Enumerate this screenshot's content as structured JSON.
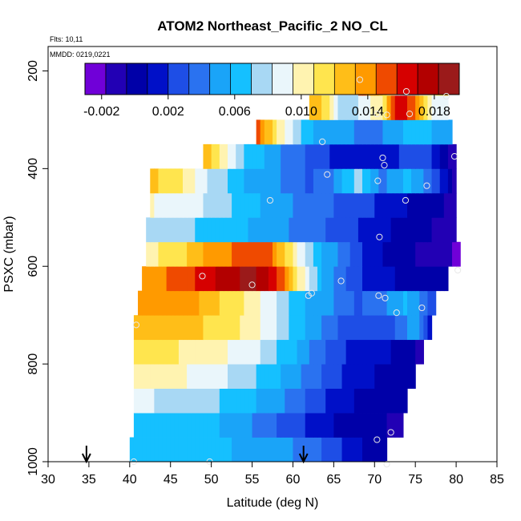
{
  "chart_data": {
    "type": "heatmap",
    "title": "ATOM2 Northeast_Pacific_2 NO_CL",
    "notes": [
      "Flts: 10,11",
      "MMDD: 0219,0221"
    ],
    "xlabel": "Latitude (deg N)",
    "ylabel": "PSXC (mbar)",
    "xlim": [
      30,
      85
    ],
    "ylim": [
      1000,
      150
    ],
    "y_inverted": true,
    "x_ticks": [
      "30",
      "35",
      "40",
      "45",
      "50",
      "55",
      "60",
      "65",
      "70",
      "75",
      "80",
      "85"
    ],
    "y_ticks": [
      "200",
      "400",
      "600",
      "800",
      "1000"
    ],
    "colorbar": {
      "min": -0.003,
      "max": 0.0195,
      "tick_labels": [
        "-0.002",
        "0.002",
        "0.006",
        "0.010",
        "0.014",
        "0.018"
      ],
      "tick_values": [
        -0.002,
        0.002,
        0.006,
        0.01,
        0.014,
        0.018
      ],
      "colors": [
        "#7000d8",
        "#2200b4",
        "#0000a8",
        "#0010c8",
        "#1e4ee6",
        "#2a72f0",
        "#1aa4f8",
        "#15c0ff",
        "#a8d8f4",
        "#eaf6fb",
        "#fff3b0",
        "#ffe54e",
        "#ffbe18",
        "#ff9a00",
        "#ef4a00",
        "#d60000",
        "#b20000",
        "#9b1a1a"
      ]
    },
    "pressure_levels": [
      975,
      925,
      875,
      825,
      775,
      725,
      675,
      625,
      575,
      525,
      475,
      425,
      375,
      325,
      275,
      225
    ],
    "rows": [
      {
        "p": 975,
        "lat_min": 40.0,
        "lat_max": 71.5,
        "knots": [
          [
            40,
            0.0062
          ],
          [
            46,
            0.006
          ],
          [
            52,
            0.0058
          ],
          [
            58,
            0.0052
          ],
          [
            64,
            0.003
          ],
          [
            68,
            0.001
          ],
          [
            71.5,
            -0.0005
          ]
        ]
      },
      {
        "p": 925,
        "lat_min": 40.5,
        "lat_max": 73.5,
        "knots": [
          [
            40.5,
            0.007
          ],
          [
            45,
            0.0065
          ],
          [
            50,
            0.006
          ],
          [
            55,
            0.0045
          ],
          [
            60,
            0.0025
          ],
          [
            64,
            0.001
          ],
          [
            68,
            0.0
          ],
          [
            73.5,
            -0.0008
          ]
        ]
      },
      {
        "p": 875,
        "lat_min": 40.5,
        "lat_max": 74.0,
        "knots": [
          [
            40.5,
            0.0085
          ],
          [
            45,
            0.008
          ],
          [
            50,
            0.0072
          ],
          [
            55,
            0.006
          ],
          [
            60,
            0.0042
          ],
          [
            64,
            0.002
          ],
          [
            68,
            0.0005
          ],
          [
            74,
            -0.0005
          ]
        ]
      },
      {
        "p": 825,
        "lat_min": 40.5,
        "lat_max": 75.0,
        "knots": [
          [
            40.5,
            0.0105
          ],
          [
            45,
            0.0098
          ],
          [
            50,
            0.009
          ],
          [
            55,
            0.0072
          ],
          [
            60,
            0.005
          ],
          [
            64,
            0.003
          ],
          [
            68,
            0.001
          ],
          [
            72,
            0.0005
          ],
          [
            75,
            -0.0005
          ]
        ]
      },
      {
        "p": 775,
        "lat_min": 40.5,
        "lat_max": 76.0,
        "knots": [
          [
            40.5,
            0.0118
          ],
          [
            45,
            0.011
          ],
          [
            50,
            0.01
          ],
          [
            55,
            0.0088
          ],
          [
            60,
            0.006
          ],
          [
            64,
            0.0032
          ],
          [
            68,
            0.0012
          ],
          [
            72,
            0.0008
          ],
          [
            76,
            -0.001
          ]
        ]
      },
      {
        "p": 725,
        "lat_min": 40.5,
        "lat_max": 77.0,
        "knots": [
          [
            40.5,
            0.0125
          ],
          [
            45,
            0.013
          ],
          [
            50,
            0.0118
          ],
          [
            55,
            0.0102
          ],
          [
            60,
            0.0068
          ],
          [
            64,
            0.0042
          ],
          [
            68,
            0.002
          ],
          [
            72,
            0.003
          ],
          [
            75,
            0.005
          ],
          [
            77,
            0.001
          ]
        ]
      },
      {
        "p": 675,
        "lat_min": 41.0,
        "lat_max": 77.5,
        "knots": [
          [
            41,
            0.014
          ],
          [
            45,
            0.0145
          ],
          [
            49,
            0.013
          ],
          [
            53,
            0.0112
          ],
          [
            57,
            0.009
          ],
          [
            61,
            0.006
          ],
          [
            65,
            0.0045
          ],
          [
            68,
            0.003
          ],
          [
            71,
            0.004
          ],
          [
            74,
            0.006
          ],
          [
            77.5,
            0.002
          ]
        ]
      },
      {
        "p": 625,
        "lat_min": 41.5,
        "lat_max": 79.0,
        "knots": [
          [
            41.5,
            0.0132
          ],
          [
            45,
            0.0148
          ],
          [
            49,
            0.016
          ],
          [
            52,
            0.0178
          ],
          [
            55,
            0.0186
          ],
          [
            58,
            0.016
          ],
          [
            61,
            0.01
          ],
          [
            64,
            0.005
          ],
          [
            67,
            0.003
          ],
          [
            70,
            0.0012
          ],
          [
            74,
            0.0005
          ],
          [
            79,
            0.0
          ]
        ]
      },
      {
        "p": 575,
        "lat_min": 42.0,
        "lat_max": 80.5,
        "knots": [
          [
            42,
            0.0105
          ],
          [
            45,
            0.011
          ],
          [
            49,
            0.0132
          ],
          [
            53,
            0.0146
          ],
          [
            57,
            0.0152
          ],
          [
            60,
            0.0105
          ],
          [
            63,
            0.006
          ],
          [
            66,
            0.004
          ],
          [
            70,
            0.001
          ],
          [
            75,
            -0.0005
          ],
          [
            78,
            -0.0015
          ],
          [
            80.5,
            -0.002
          ]
        ]
      },
      {
        "p": 525,
        "lat_min": 42.0,
        "lat_max": 80.0,
        "knots": [
          [
            42,
            0.0082
          ],
          [
            45,
            0.0078
          ],
          [
            49,
            0.0068
          ],
          [
            53,
            0.006
          ],
          [
            57,
            0.0052
          ],
          [
            61,
            0.004
          ],
          [
            65,
            0.003
          ],
          [
            70,
            0.0012
          ],
          [
            75,
            0.0
          ],
          [
            80,
            -0.0012
          ]
        ]
      },
      {
        "p": 475,
        "lat_min": 42.5,
        "lat_max": 80.0,
        "knots": [
          [
            42.5,
            0.0096
          ],
          [
            45,
            0.009
          ],
          [
            50,
            0.008
          ],
          [
            55,
            0.006
          ],
          [
            60,
            0.0045
          ],
          [
            65,
            0.0032
          ],
          [
            70,
            0.002
          ],
          [
            75,
            0.0005
          ],
          [
            80,
            -0.001
          ]
        ]
      },
      {
        "p": 425,
        "lat_min": 42.5,
        "lat_max": 80.0,
        "knots": [
          [
            42.5,
            0.0125
          ],
          [
            46,
            0.011
          ],
          [
            50,
            0.008
          ],
          [
            54,
            0.0058
          ],
          [
            58,
            0.0048
          ],
          [
            62,
            0.003
          ],
          [
            65,
            0.0045
          ],
          [
            68,
            0.0075
          ],
          [
            71,
            0.004
          ],
          [
            74,
            0.006
          ],
          [
            77,
            0.0035
          ],
          [
            80,
            -0.001
          ]
        ]
      },
      {
        "p": 375,
        "lat_min": 49.0,
        "lat_max": 80.0,
        "knots": [
          [
            49,
            0.0135
          ],
          [
            51,
            0.011
          ],
          [
            54,
            0.007
          ],
          [
            58,
            0.0048
          ],
          [
            62,
            0.003
          ],
          [
            66,
            0.0015
          ],
          [
            70,
            0.0012
          ],
          [
            74,
            0.0022
          ],
          [
            77,
            0.002
          ],
          [
            80,
            -0.002
          ]
        ]
      },
      {
        "p": 325,
        "lat_min": 55.5,
        "lat_max": 79.5,
        "knots": [
          [
            55.5,
            0.015
          ],
          [
            58,
            0.011
          ],
          [
            60,
            0.008
          ],
          [
            63,
            0.0055
          ],
          [
            66,
            0.0048
          ],
          [
            70,
            0.004
          ],
          [
            74,
            0.006
          ],
          [
            79.5,
            0.0055
          ]
        ]
      },
      {
        "p": 275,
        "lat_min": 62.0,
        "lat_max": 79.0,
        "knots": [
          [
            62,
            0.013
          ],
          [
            64,
            0.0115
          ],
          [
            66,
            0.007
          ],
          [
            68,
            0.008
          ],
          [
            71,
            0.011
          ],
          [
            73,
            0.017
          ],
          [
            75,
            0.0145
          ],
          [
            77,
            0.009
          ],
          [
            79,
            0.0085
          ]
        ]
      },
      {
        "p": 225,
        "lat_min": 68.0,
        "lat_max": 79.0,
        "knots": [
          [
            68,
            0.015
          ],
          [
            70,
            0.014
          ],
          [
            72,
            0.0098
          ],
          [
            74,
            0.0075
          ],
          [
            76,
            0.0085
          ],
          [
            78,
            0.0115
          ],
          [
            79,
            0.0125
          ]
        ]
      }
    ],
    "sample_points": [
      [
        40.5,
        1000
      ],
      [
        49.8,
        1000
      ],
      [
        71.5,
        1005
      ],
      [
        70.3,
        955
      ],
      [
        72.0,
        940
      ],
      [
        40.8,
        720
      ],
      [
        72.7,
        695
      ],
      [
        75.8,
        685
      ],
      [
        70.5,
        660
      ],
      [
        71.3,
        665
      ],
      [
        61.9,
        660
      ],
      [
        62.3,
        655
      ],
      [
        65.9,
        630
      ],
      [
        55.0,
        638
      ],
      [
        48.9,
        620
      ],
      [
        80.2,
        608
      ],
      [
        70.6,
        540
      ],
      [
        57.2,
        465
      ],
      [
        73.8,
        465
      ],
      [
        70.4,
        425
      ],
      [
        76.4,
        435
      ],
      [
        64.2,
        412
      ],
      [
        71.2,
        393
      ],
      [
        71.0,
        378
      ],
      [
        79.8,
        375
      ],
      [
        63.6,
        345
      ],
      [
        70.3,
        288
      ],
      [
        71.5,
        290
      ],
      [
        74.3,
        288
      ],
      [
        73.9,
        242
      ],
      [
        78.8,
        252
      ],
      [
        68.2,
        218
      ]
    ],
    "arrows_at_lat": [
      34.7,
      61.3
    ],
    "grid": false,
    "legend": "colorbar top"
  }
}
